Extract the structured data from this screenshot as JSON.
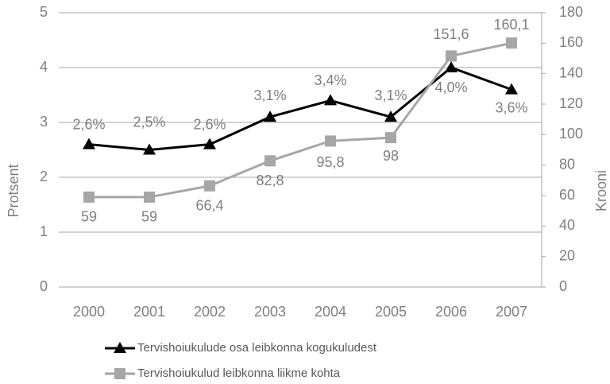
{
  "chart_data": {
    "type": "line",
    "categories": [
      "2000",
      "2001",
      "2002",
      "2003",
      "2004",
      "2005",
      "2006",
      "2007"
    ],
    "ylabel": "Protsent",
    "y2label": "Krooni",
    "ylim": [
      0,
      5
    ],
    "yticks": [
      0,
      1,
      2,
      3,
      4,
      5
    ],
    "y2lim": [
      0,
      180
    ],
    "y2ticks": [
      0,
      20,
      40,
      60,
      80,
      100,
      120,
      140,
      160,
      180
    ],
    "grid": true,
    "legend": "bottom",
    "series": [
      {
        "name": "Tervishoiukulude osa leibkonna kogukuludest",
        "color": "#000000",
        "marker": "triangle",
        "values": [
          2.6,
          2.5,
          2.6,
          3.1,
          3.4,
          3.1,
          4.0,
          3.6
        ],
        "value_labels": [
          "2,6%",
          "2,5%",
          "2,6%",
          "3,1%",
          "3,4%",
          "3,1%",
          "4,0%",
          "3,6%"
        ]
      },
      {
        "name": "Tervishoiukulud leibkonna liikme kohta",
        "color": "#a6a6a6",
        "marker": "square",
        "axis": "y2",
        "values": [
          59,
          59,
          66.4,
          82.8,
          95.8,
          98,
          151.6,
          160.1
        ],
        "value_labels": [
          "59",
          "59",
          "66,4",
          "82,8",
          "95,8",
          "98",
          "151,6",
          "160,1"
        ]
      }
    ]
  }
}
